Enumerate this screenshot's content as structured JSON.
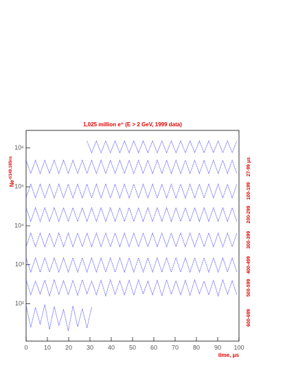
{
  "chart_data": {
    "type": "line",
    "log_y": true,
    "title": "1,025 million e⁺ (E > 2 GeV, 1999 data)",
    "x_label": "time, μs",
    "y_label": {
      "base": "Ne",
      "exponent": "-t/149.185ns"
    },
    "xlim": [
      0,
      100
    ],
    "xticks": [
      0,
      10,
      20,
      30,
      40,
      50,
      60,
      70,
      80,
      90,
      100
    ],
    "ylim": [
      11,
      2800000
    ],
    "yticks": [
      {
        "value": 100,
        "label": "10²"
      },
      {
        "value": 1000,
        "label": "10³"
      },
      {
        "value": 10000,
        "label": "10⁴"
      },
      {
        "value": 100000,
        "label": "10⁵"
      },
      {
        "value": 1000000,
        "label": "10⁶"
      }
    ],
    "color": "#2b2bff",
    "x": [
      0,
      2.2,
      4.4,
      6.6,
      8.8,
      11,
      13.2,
      15.4,
      17.6,
      19.8,
      22,
      24.2,
      26.4,
      28.6,
      30.8,
      33,
      35.2,
      37.4,
      39.6,
      41.8,
      44,
      46.2,
      48.4,
      50.6,
      52.8,
      55,
      57.2,
      59.4,
      61.6,
      63.8,
      66,
      68.2,
      70.4,
      72.6,
      74.8,
      77,
      79.2,
      81.4,
      83.6,
      85.8,
      88,
      90.2,
      92.4,
      94.6,
      96.8,
      99
    ],
    "series": [
      {
        "values": [
          null,
          null,
          null,
          null,
          null,
          null,
          null,
          null,
          null,
          null,
          null,
          null,
          null,
          1500000,
          750000,
          1500000,
          750000,
          1500000,
          750000,
          1500000,
          750000,
          1500000,
          750000,
          1500000,
          750000,
          1500000,
          750000,
          1500000,
          750000,
          1500000,
          750000,
          1500000,
          750000,
          1500000,
          750000,
          1500000,
          750000,
          1500000,
          750000,
          1500000,
          750000,
          1500000,
          750000,
          1500000,
          750000,
          1500000
        ]
      },
      {
        "values": [
          480000,
          220000,
          480000,
          220000,
          480000,
          220000,
          480000,
          220000,
          480000,
          220000,
          480000,
          220000,
          480000,
          220000,
          480000,
          220000,
          480000,
          220000,
          480000,
          220000,
          480000,
          220000,
          480000,
          220000,
          480000,
          220000,
          480000,
          220000,
          480000,
          220000,
          480000,
          220000,
          480000,
          220000,
          480000,
          220000,
          480000,
          220000,
          480000,
          220000,
          480000,
          220000,
          480000,
          220000,
          480000,
          220000
        ]
      },
      {
        "values": [
          52000,
          117000,
          52000,
          117000,
          52000,
          117000,
          52000,
          117000,
          52000,
          117000,
          52000,
          117000,
          52000,
          117000,
          52000,
          117000,
          52000,
          117000,
          52000,
          117000,
          52000,
          117000,
          52000,
          117000,
          52000,
          117000,
          52000,
          117000,
          52000,
          117000,
          52000,
          117000,
          52000,
          117000,
          52000,
          117000,
          52000,
          117000,
          52000,
          117000,
          52000,
          117000,
          52000,
          117000,
          52000,
          117000
        ]
      },
      {
        "values": [
          29000,
          13000,
          29000,
          13000,
          29000,
          13000,
          29000,
          13000,
          29000,
          13000,
          29000,
          13000,
          29000,
          13000,
          29000,
          13000,
          29000,
          13000,
          29000,
          13000,
          29000,
          13000,
          29000,
          13000,
          29000,
          13000,
          29000,
          13000,
          29000,
          13000,
          29000,
          13000,
          29000,
          13000,
          29000,
          13000,
          29000,
          13000,
          29000,
          13000,
          29000,
          13000,
          29000,
          13000,
          29000,
          13000
        ]
      },
      {
        "values": [
          2900,
          6500,
          2900,
          6500,
          2900,
          6500,
          2900,
          6500,
          2900,
          6500,
          2900,
          6500,
          2900,
          6500,
          2900,
          6500,
          2900,
          6500,
          2900,
          6500,
          2900,
          6500,
          2900,
          6500,
          2900,
          6500,
          2900,
          6500,
          2900,
          6500,
          2900,
          6500,
          2900,
          6500,
          2900,
          6500,
          2900,
          6500,
          2900,
          6500,
          2900,
          6500,
          2900,
          6500,
          2900,
          6500
        ]
      },
      {
        "values": [
          1500,
          650,
          1500,
          650,
          1500,
          650,
          1500,
          650,
          1500,
          650,
          1500,
          650,
          1500,
          650,
          1500,
          650,
          1500,
          650,
          1500,
          650,
          1500,
          650,
          1500,
          650,
          1500,
          650,
          1500,
          650,
          1500,
          650,
          1500,
          650,
          1500,
          650,
          1500,
          650,
          1500,
          650,
          1500,
          650,
          1500,
          650,
          1500,
          650,
          1500,
          650
        ]
      },
      {
        "values": [
          410,
          170,
          380,
          180,
          400,
          160,
          410,
          175,
          390,
          170,
          400,
          165,
          410,
          180,
          380,
          170,
          400,
          160,
          410,
          175,
          390,
          170,
          400,
          165,
          410,
          180,
          380,
          170,
          400,
          160,
          410,
          175,
          390,
          170,
          400,
          165,
          410,
          180,
          380,
          170,
          400,
          160,
          410,
          175,
          390,
          170
        ]
      },
      {
        "values": [
          90,
          25,
          80,
          30,
          95,
          22,
          85,
          28,
          70,
          20,
          88,
          26,
          75,
          24,
          82,
          null,
          null,
          null,
          null,
          null,
          null,
          null,
          null,
          null,
          null,
          null,
          null,
          null,
          null,
          null,
          null,
          null,
          null,
          null,
          null,
          null,
          null,
          null,
          null,
          null,
          null,
          null,
          null,
          null,
          null,
          null
        ]
      }
    ],
    "annotations": [
      "27-99 μs",
      "100-199",
      "200-299",
      "300-399",
      "400-499",
      "500-599",
      "600-699"
    ]
  }
}
